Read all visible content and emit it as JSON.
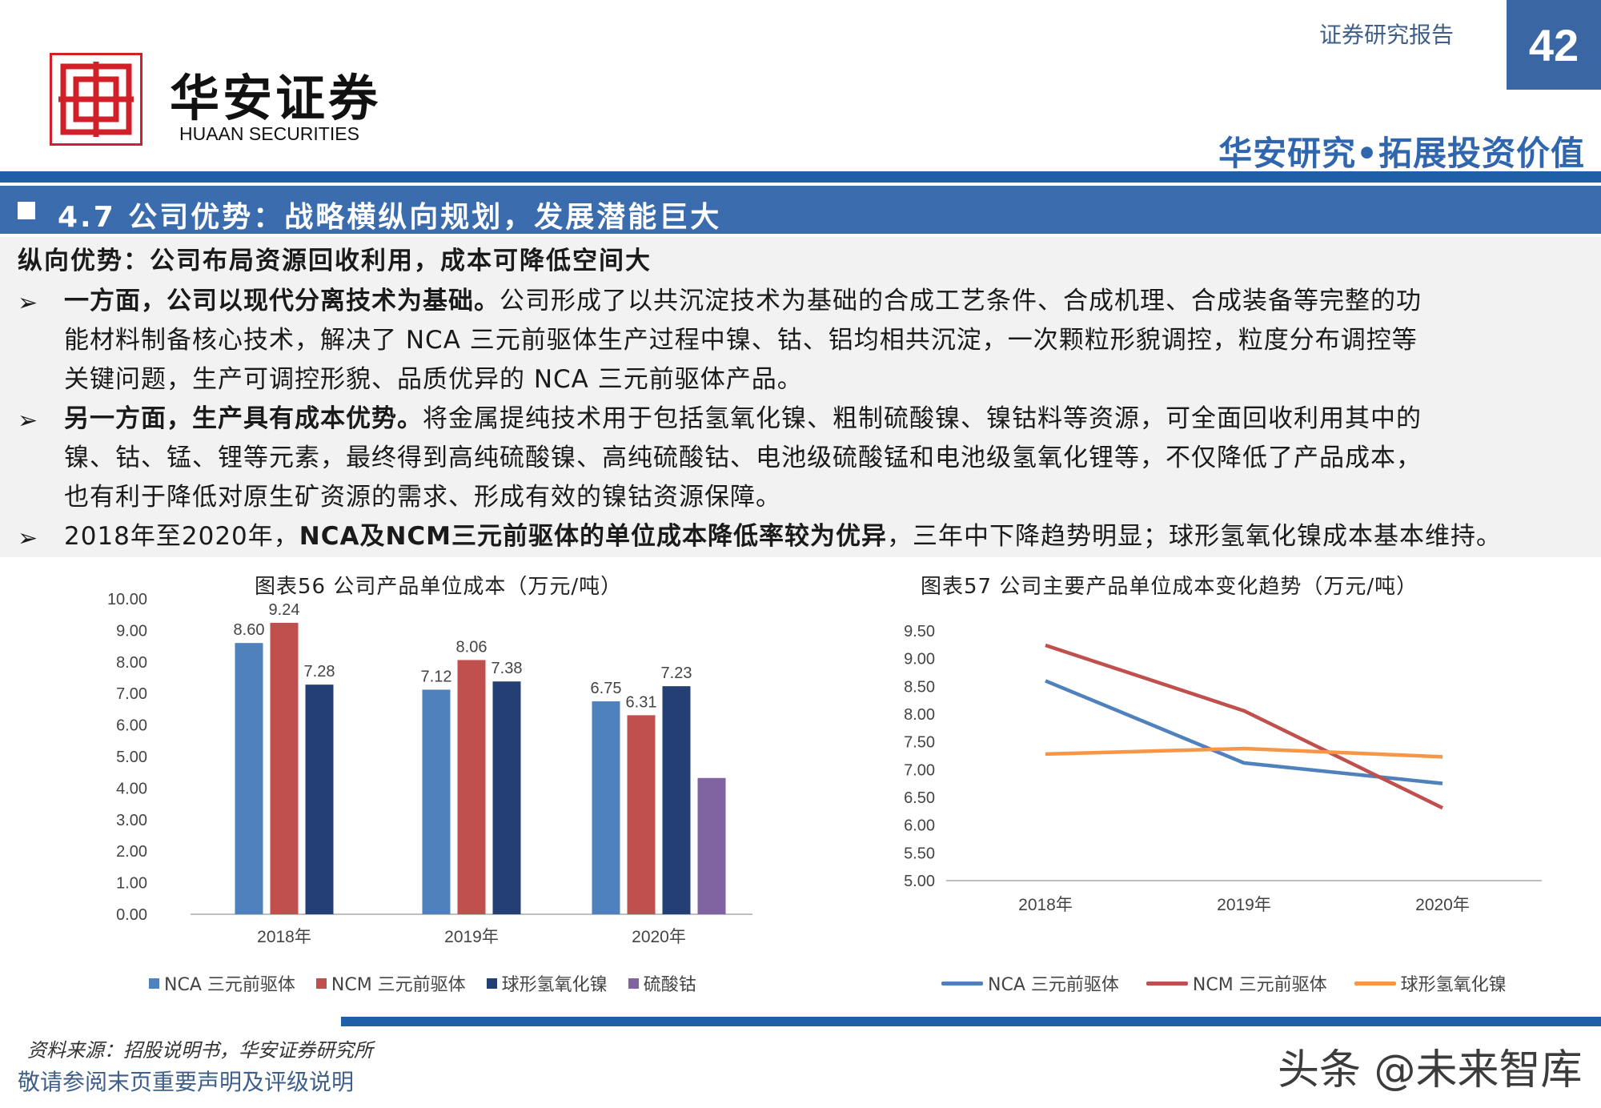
{
  "header": {
    "logo_cn": "华安证券",
    "logo_en": "HUAAN SECURITIES",
    "report_type": "证券研究报告",
    "page_number": "42",
    "slogan": "华安研究•拓展投资价值"
  },
  "section": {
    "title": "4.7 公司优势：战略横纵向规划，发展潜能巨大",
    "heading": "纵向优势：公司布局资源回收利用，成本可降低空间大",
    "bullets": [
      {
        "lead": "一方面，公司以现代分离技术为基础。",
        "lines": [
          "公司形成了以共沉淀技术为基础的合成工艺条件、合成机理、合成装备等完整的功",
          "能材料制备核心技术，解决了 NCA 三元前驱体生产过程中镍、钴、铝均相共沉淀，一次颗粒形貌调控，粒度分布调控等",
          "关键问题，生产可调控形貌、品质优异的 NCA 三元前驱体产品。"
        ]
      },
      {
        "lead": "另一方面，生产具有成本优势。",
        "lines": [
          "将金属提纯技术用于包括氢氧化镍、粗制硫酸镍、镍钴料等资源，可全面回收利用其中的",
          "镍、钴、锰、锂等元素，最终得到高纯硫酸镍、高纯硫酸钴、电池级硫酸锰和电池级氢氧化锂等，不仅降低了产品成本，",
          "也有利于降低对原生矿资源的需求、形成有效的镍钴资源保障。"
        ]
      },
      {
        "pre": "2018年至2020年，",
        "lead": "NCA及NCM三元前驱体的单位成本降低率较为优异",
        "post": "，三年中下降趋势明显；球形氢氧化镍成本基本维持。"
      }
    ]
  },
  "chart_data": [
    {
      "type": "bar",
      "title": "图表56  公司产品单位成本（万元/吨）",
      "categories": [
        "2018年",
        "2019年",
        "2020年"
      ],
      "series": [
        {
          "name": "NCA 三元前驱体",
          "values": [
            8.6,
            7.12,
            6.75
          ],
          "color": "#4f81bd"
        },
        {
          "name": "NCM 三元前驱体",
          "values": [
            9.24,
            8.06,
            6.31
          ],
          "color": "#c0504d"
        },
        {
          "name": "球形氢氧化镍",
          "values": [
            7.28,
            7.38,
            7.23
          ],
          "color": "#243f73"
        },
        {
          "name": "硫酸钴",
          "values": [
            null,
            null,
            4.32
          ],
          "color": "#8064a2"
        }
      ],
      "data_labels": [
        [
          "8.60",
          "9.24",
          "7.28",
          ""
        ],
        [
          "7.12",
          "8.06",
          "7.38",
          ""
        ],
        [
          "6.75",
          "6.31",
          "7.23",
          ""
        ]
      ],
      "ylim": [
        0,
        10
      ],
      "yticks": [
        "0.00",
        "1.00",
        "2.00",
        "3.00",
        "4.00",
        "5.00",
        "6.00",
        "7.00",
        "8.00",
        "9.00",
        "10.00"
      ],
      "legend": "bottom",
      "grid": false
    },
    {
      "type": "line",
      "title": "图表57  公司主要产品单位成本变化趋势（万元/吨）",
      "categories": [
        "2018年",
        "2019年",
        "2020年"
      ],
      "series": [
        {
          "name": "NCA 三元前驱体",
          "values": [
            8.6,
            7.12,
            6.75
          ],
          "color": "#4f81bd"
        },
        {
          "name": "NCM 三元前驱体",
          "values": [
            9.24,
            8.06,
            6.31
          ],
          "color": "#c0504d"
        },
        {
          "name": "球形氢氧化镍",
          "values": [
            7.28,
            7.38,
            7.23
          ],
          "color": "#f79646"
        }
      ],
      "ylim": [
        5.0,
        9.5
      ],
      "yticks": [
        "5.00",
        "5.50",
        "6.00",
        "6.50",
        "7.00",
        "7.50",
        "8.00",
        "8.50",
        "9.00",
        "9.50"
      ],
      "legend": "bottom",
      "grid": false
    }
  ],
  "footer": {
    "source": "资料来源：招股说明书，华安证券研究所",
    "disclaimer": "敬请参阅末页重要声明及评级说明",
    "watermark": "头条 @未来智库"
  }
}
